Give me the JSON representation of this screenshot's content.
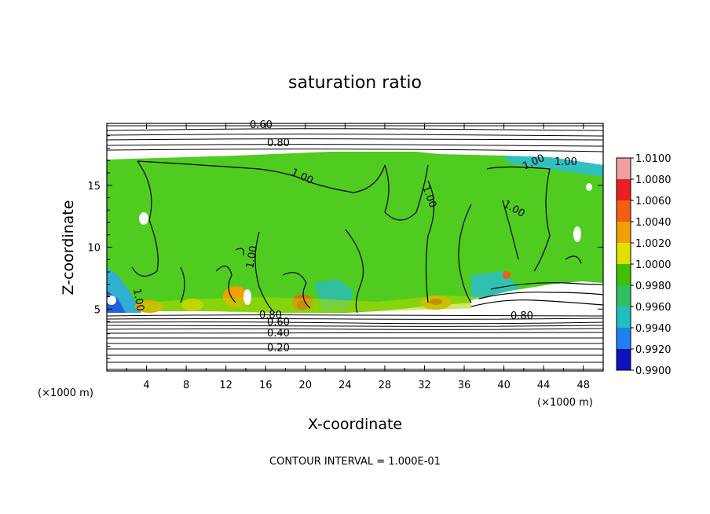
{
  "chart_data": {
    "type": "heatmap",
    "title": "saturation ratio",
    "xlabel": "X-coordinate",
    "ylabel": "Z-coordinate",
    "x_unit_label": "(×1000 m)",
    "footer": "CONTOUR INTERVAL = 1.000E-01",
    "xlim": [
      0,
      50
    ],
    "ylim": [
      0,
      20
    ],
    "x_ticks": [
      4,
      8,
      12,
      16,
      20,
      24,
      28,
      32,
      36,
      40,
      44,
      48
    ],
    "y_ticks": [
      5,
      10,
      15
    ],
    "colorbar": {
      "levels": [
        "1.0100",
        "1.0080",
        "1.0060",
        "1.0040",
        "1.0020",
        "1.0000",
        "0.9980",
        "0.9960",
        "0.9940",
        "0.9920",
        "0.9900"
      ],
      "colors": [
        "#f0a0a0",
        "#e82020",
        "#f06010",
        "#f0a000",
        "#e0e000",
        "#40c000",
        "#30c060",
        "#20c0c0",
        "#2080f0",
        "#1010c0",
        "#7010a0"
      ]
    },
    "contour_labels": [
      {
        "text": "0.60",
        "x": 30,
        "y": 19.3
      },
      {
        "text": "0.80",
        "x": 36,
        "y": 18.6
      },
      {
        "text": "1.00",
        "x": 40,
        "y": 15.4
      },
      {
        "text": "1.00",
        "x": 47,
        "y": 14.2
      },
      {
        "text": "1.00",
        "x": 47,
        "y": 13.1
      },
      {
        "text": "1.00",
        "x": 43,
        "y": 9.4
      },
      {
        "text": "1.00",
        "x": 29,
        "y": 8.8
      },
      {
        "text": "1.00",
        "x": 6,
        "y": 6.3
      },
      {
        "text": "1.00",
        "x": 56,
        "y": 13.9
      },
      {
        "text": "0.80",
        "x": 33,
        "y": 4.3
      },
      {
        "text": "0.60",
        "x": 35,
        "y": 3.6
      },
      {
        "text": "0.40",
        "x": 35,
        "y": 2.9
      },
      {
        "text": "0.20",
        "x": 34,
        "y": 1.6
      },
      {
        "text": "0.80",
        "x": 67,
        "y": 4.3
      }
    ]
  }
}
